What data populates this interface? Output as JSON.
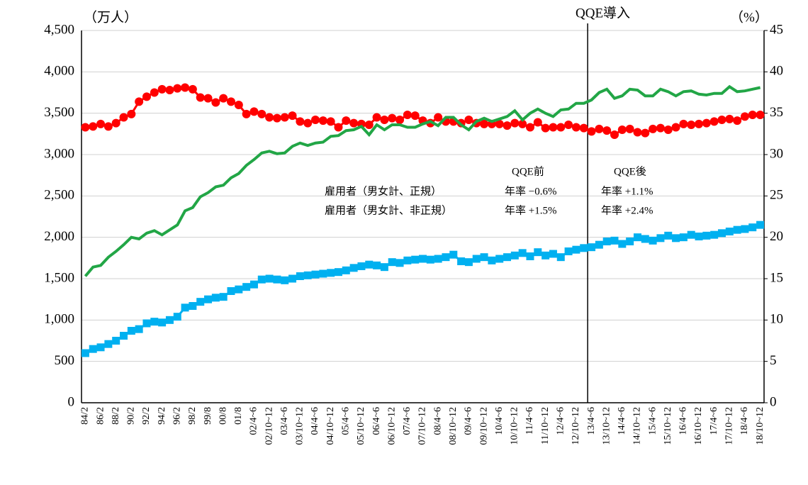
{
  "chart_data": {
    "type": "line",
    "y_label": "（万人）",
    "y2_label": "（%）",
    "annotations": [
      "QQE導入",
      "QQE前",
      "QQE後",
      "雇用者（男女計、正規）",
      "年率 −0.6%",
      "年率 +1.1%",
      "雇用者（男女計、非正規）",
      "年率 +1.5%",
      "年率 +2.4%"
    ],
    "categories": [
      "84/2",
      null,
      "86/2",
      null,
      "88/2",
      null,
      "90/2",
      null,
      "92/2",
      null,
      "94/2",
      null,
      "96/2",
      null,
      "98/2",
      null,
      "99/8",
      null,
      "00/8",
      null,
      "01/8",
      null,
      "02/4~6",
      null,
      "02/10~12",
      null,
      "03/4~6",
      null,
      "03/10~12",
      null,
      "04/4~6",
      null,
      "04/10~12",
      null,
      "05/4~6",
      null,
      "05/10~12",
      null,
      "06/4~6",
      null,
      "06/10~12",
      null,
      "07/4~6",
      null,
      "07/10~12",
      null,
      "08/4~6",
      null,
      "08/10~12",
      null,
      "09/4~6",
      null,
      "09/10~12",
      null,
      "10/4~6",
      null,
      "10/10~12",
      null,
      "11/4~6",
      null,
      "11/10~12",
      null,
      "12/4~6",
      null,
      "12/10~12",
      null,
      "13/4~6",
      null,
      "13/10~12",
      null,
      "14/4~6",
      null,
      "14/10~12",
      null,
      "15/4~6",
      null,
      "15/10~12",
      null,
      "16/4~6",
      null,
      "16/10~12",
      null,
      "17/4~6",
      null,
      "17/10~12",
      null,
      "18/4~6",
      null,
      "18/10~12"
    ],
    "series": [
      {
        "color": "#ff0000",
        "marker": "circle",
        "axis": "y",
        "values": [
          3330,
          3340,
          3370,
          3340,
          3380,
          3450,
          3490,
          3640,
          3700,
          3750,
          3790,
          3780,
          3800,
          3810,
          3790,
          3690,
          3680,
          3630,
          3680,
          3640,
          3600,
          3490,
          3520,
          3490,
          3450,
          3440,
          3450,
          3470,
          3400,
          3380,
          3420,
          3410,
          3400,
          3330,
          3410,
          3380,
          3370,
          3360,
          3450,
          3420,
          3440,
          3420,
          3480,
          3470,
          3410,
          3380,
          3450,
          3400,
          3400,
          3380,
          3420,
          3380,
          3370,
          3370,
          3370,
          3350,
          3380,
          3370,
          3330,
          3390,
          3320,
          3330,
          3330,
          3360,
          3330,
          3320,
          3280,
          3310,
          3290,
          3240,
          3300,
          3310,
          3270,
          3260,
          3310,
          3320,
          3300,
          3330,
          3370,
          3360,
          3370,
          3380,
          3400,
          3420,
          3430,
          3410,
          3460,
          3480,
          3480
        ]
      },
      {
        "color": "#00b0f0",
        "marker": "square",
        "axis": "y",
        "values": [
          600,
          650,
          670,
          710,
          750,
          810,
          870,
          890,
          960,
          980,
          970,
          1000,
          1040,
          1150,
          1170,
          1220,
          1250,
          1270,
          1280,
          1350,
          1370,
          1400,
          1430,
          1490,
          1500,
          1490,
          1480,
          1500,
          1530,
          1540,
          1550,
          1560,
          1570,
          1580,
          1600,
          1630,
          1650,
          1670,
          1660,
          1640,
          1700,
          1690,
          1720,
          1730,
          1740,
          1730,
          1740,
          1760,
          1790,
          1710,
          1700,
          1740,
          1760,
          1720,
          1740,
          1760,
          1780,
          1810,
          1770,
          1820,
          1780,
          1800,
          1760,
          1830,
          1850,
          1870,
          1880,
          1910,
          1950,
          1960,
          1920,
          1950,
          2000,
          1980,
          1960,
          1990,
          2020,
          1990,
          2000,
          2030,
          2010,
          2020,
          2030,
          2050,
          2070,
          2090,
          2100,
          2120,
          2150
        ]
      },
      {
        "color": "#22a646",
        "marker": "none",
        "axis": "y2",
        "values": [
          15.3,
          16.4,
          16.6,
          17.6,
          18.3,
          19.1,
          20.0,
          19.8,
          20.5,
          20.8,
          20.3,
          20.9,
          21.5,
          23.2,
          23.6,
          24.9,
          25.4,
          26.1,
          26.3,
          27.2,
          27.7,
          28.7,
          29.4,
          30.2,
          30.4,
          30.1,
          30.2,
          31.0,
          31.4,
          31.1,
          31.4,
          31.5,
          32.2,
          32.3,
          32.9,
          33.0,
          33.4,
          32.4,
          33.6,
          33.0,
          33.6,
          33.6,
          33.3,
          33.3,
          33.7,
          34.0,
          33.5,
          34.5,
          34.5,
          33.6,
          33.0,
          34.0,
          34.4,
          34.0,
          34.3,
          34.6,
          35.3,
          34.2,
          35.0,
          35.5,
          35.0,
          34.6,
          35.4,
          35.5,
          36.2,
          36.2,
          36.6,
          37.5,
          37.9,
          36.8,
          37.1,
          37.9,
          37.8,
          37.1,
          37.1,
          37.9,
          37.6,
          37.1,
          37.6,
          37.7,
          37.3,
          37.2,
          37.4,
          37.4,
          38.2,
          37.6,
          37.7,
          37.9,
          38.1
        ]
      }
    ],
    "ylim": [
      0,
      4500
    ],
    "yticks": [
      0,
      500,
      {
        "value": 1000,
        "label": "1,000"
      },
      {
        "value": 1500,
        "label": "1,500"
      },
      {
        "value": 2000,
        "label": "2,000"
      },
      {
        "value": 2500,
        "label": "2,500"
      },
      {
        "value": 3000,
        "label": "3,000"
      },
      {
        "value": 3500,
        "label": "3,500"
      },
      {
        "value": 4000,
        "label": "4,000"
      },
      {
        "value": 4500,
        "label": "4,500"
      }
    ],
    "y2lim": [
      0,
      45
    ],
    "y2ticks": [
      0,
      5,
      10,
      15,
      20,
      25,
      30,
      35,
      40,
      45
    ],
    "grid": true
  }
}
